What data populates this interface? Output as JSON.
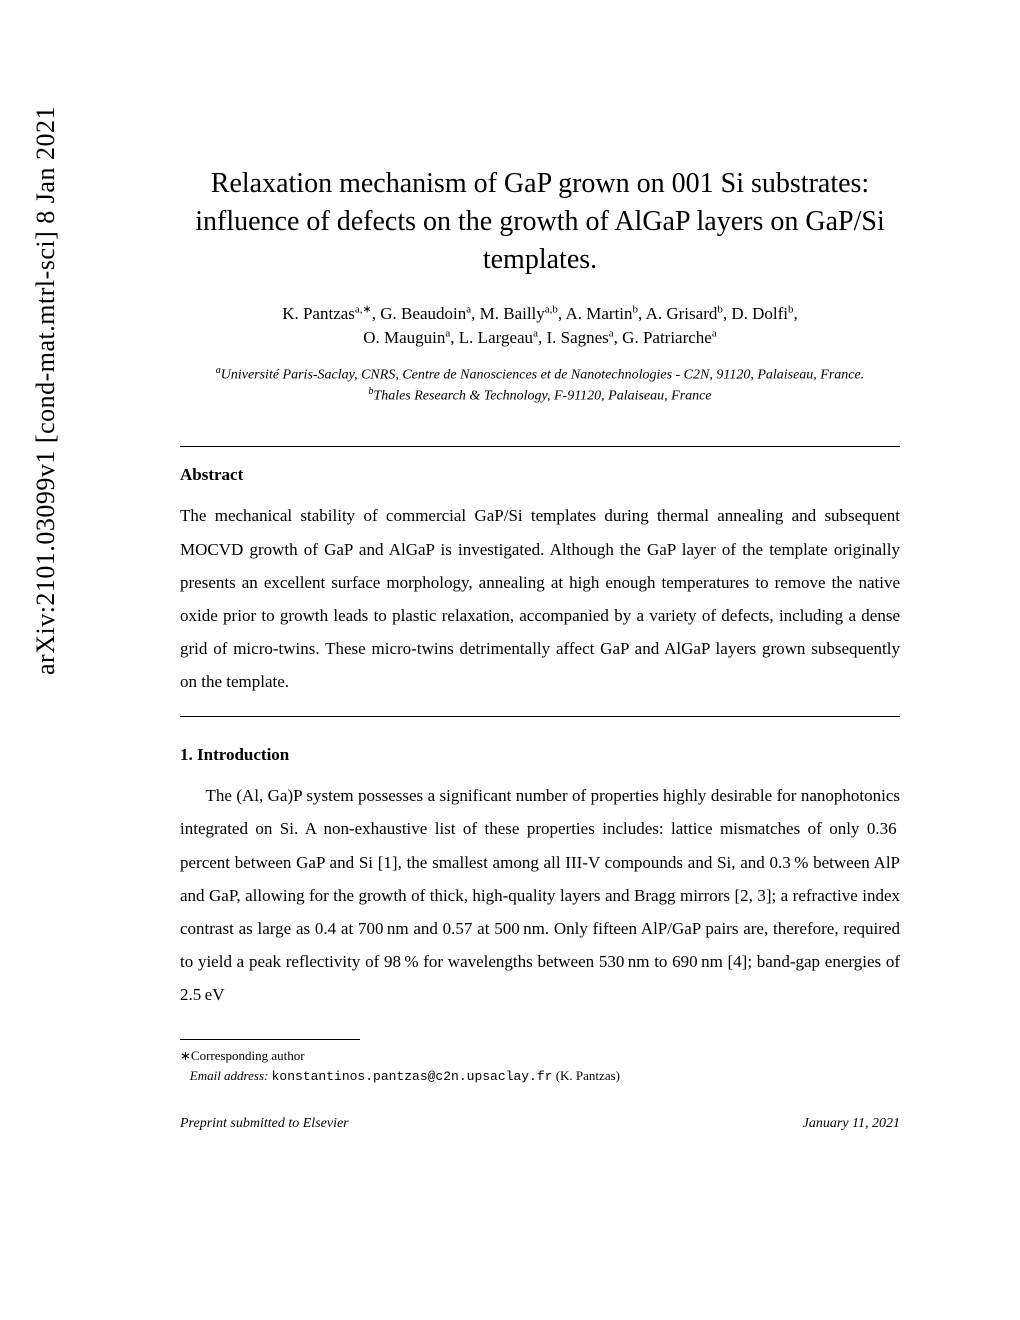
{
  "arxiv": {
    "id": "arXiv:2101.03099v1",
    "category": "[cond-mat.mtrl-sci]",
    "date": "8 Jan 2021"
  },
  "title": "Relaxation mechanism of GaP grown on 001 Si substrates: influence of defects on the growth of AlGaP layers on GaP/Si templates.",
  "authors_line1_html": "K. Pantzas<sup>a,&#8727;</sup>, G. Beaudoin<sup>a</sup>, M. Bailly<sup>a,b</sup>, A. Martin<sup>b</sup>, A. Grisard<sup>b</sup>, D. Dolfi<sup>b</sup>,",
  "authors_line2_html": "O. Mauguin<sup>a</sup>, L. Largeau<sup>a</sup>, I. Sagnes<sup>a</sup>, G. Patriarche<sup>a</sup>",
  "affiliation_a_html": "<sup>a</sup>Universit&eacute; Paris-Saclay, CNRS, Centre de Nanosciences et de Nanotechnologies - C2N, 91120, Palaiseau, France.",
  "affiliation_b_html": "<sup>b</sup>Thales Research &amp; Technology, F-91120, Palaiseau, France",
  "abstract_heading": "Abstract",
  "abstract_text": "The mechanical stability of commercial GaP/Si templates during thermal annealing and subsequent MOCVD growth of GaP and AlGaP is investigated. Although the GaP layer of the template originally presents an excellent surface morphology, annealing at high enough temperatures to remove the native oxide prior to growth leads to plastic relaxation, accompanied by a variety of defects, including a dense grid of micro-twins. These micro-twins detrimentally affect GaP and AlGaP layers grown subsequently on the template.",
  "section1_heading": "1.  Introduction",
  "body_paragraph": "The (Al, Ga)P system possesses a significant number of properties highly desirable for nanophotonics integrated on Si. A non-exhaustive list of these properties includes: lattice mismatches of only 0.36 percent between GaP and Si [1], the smallest among all III-V compounds and Si, and 0.3 % between AlP and GaP, allowing for the growth of thick, high-quality layers and Bragg mirrors [2, 3]; a refractive index contrast as large as 0.4 at 700 nm and 0.57 at 500 nm. Only fifteen AlP/GaP pairs are, therefore, required to yield a peak reflectivity of 98 % for wavelengths between 530 nm to 690 nm [4]; band-gap energies of 2.5 eV",
  "footnote_corresponding": "∗Corresponding author",
  "footnote_email_label": "Email address:",
  "footnote_email": "konstantinos.pantzas@c2n.upsaclay.fr",
  "footnote_email_name": "(K. Pantzas)",
  "footer_left": "Preprint submitted to Elsevier",
  "footer_right": "January 11, 2021"
}
